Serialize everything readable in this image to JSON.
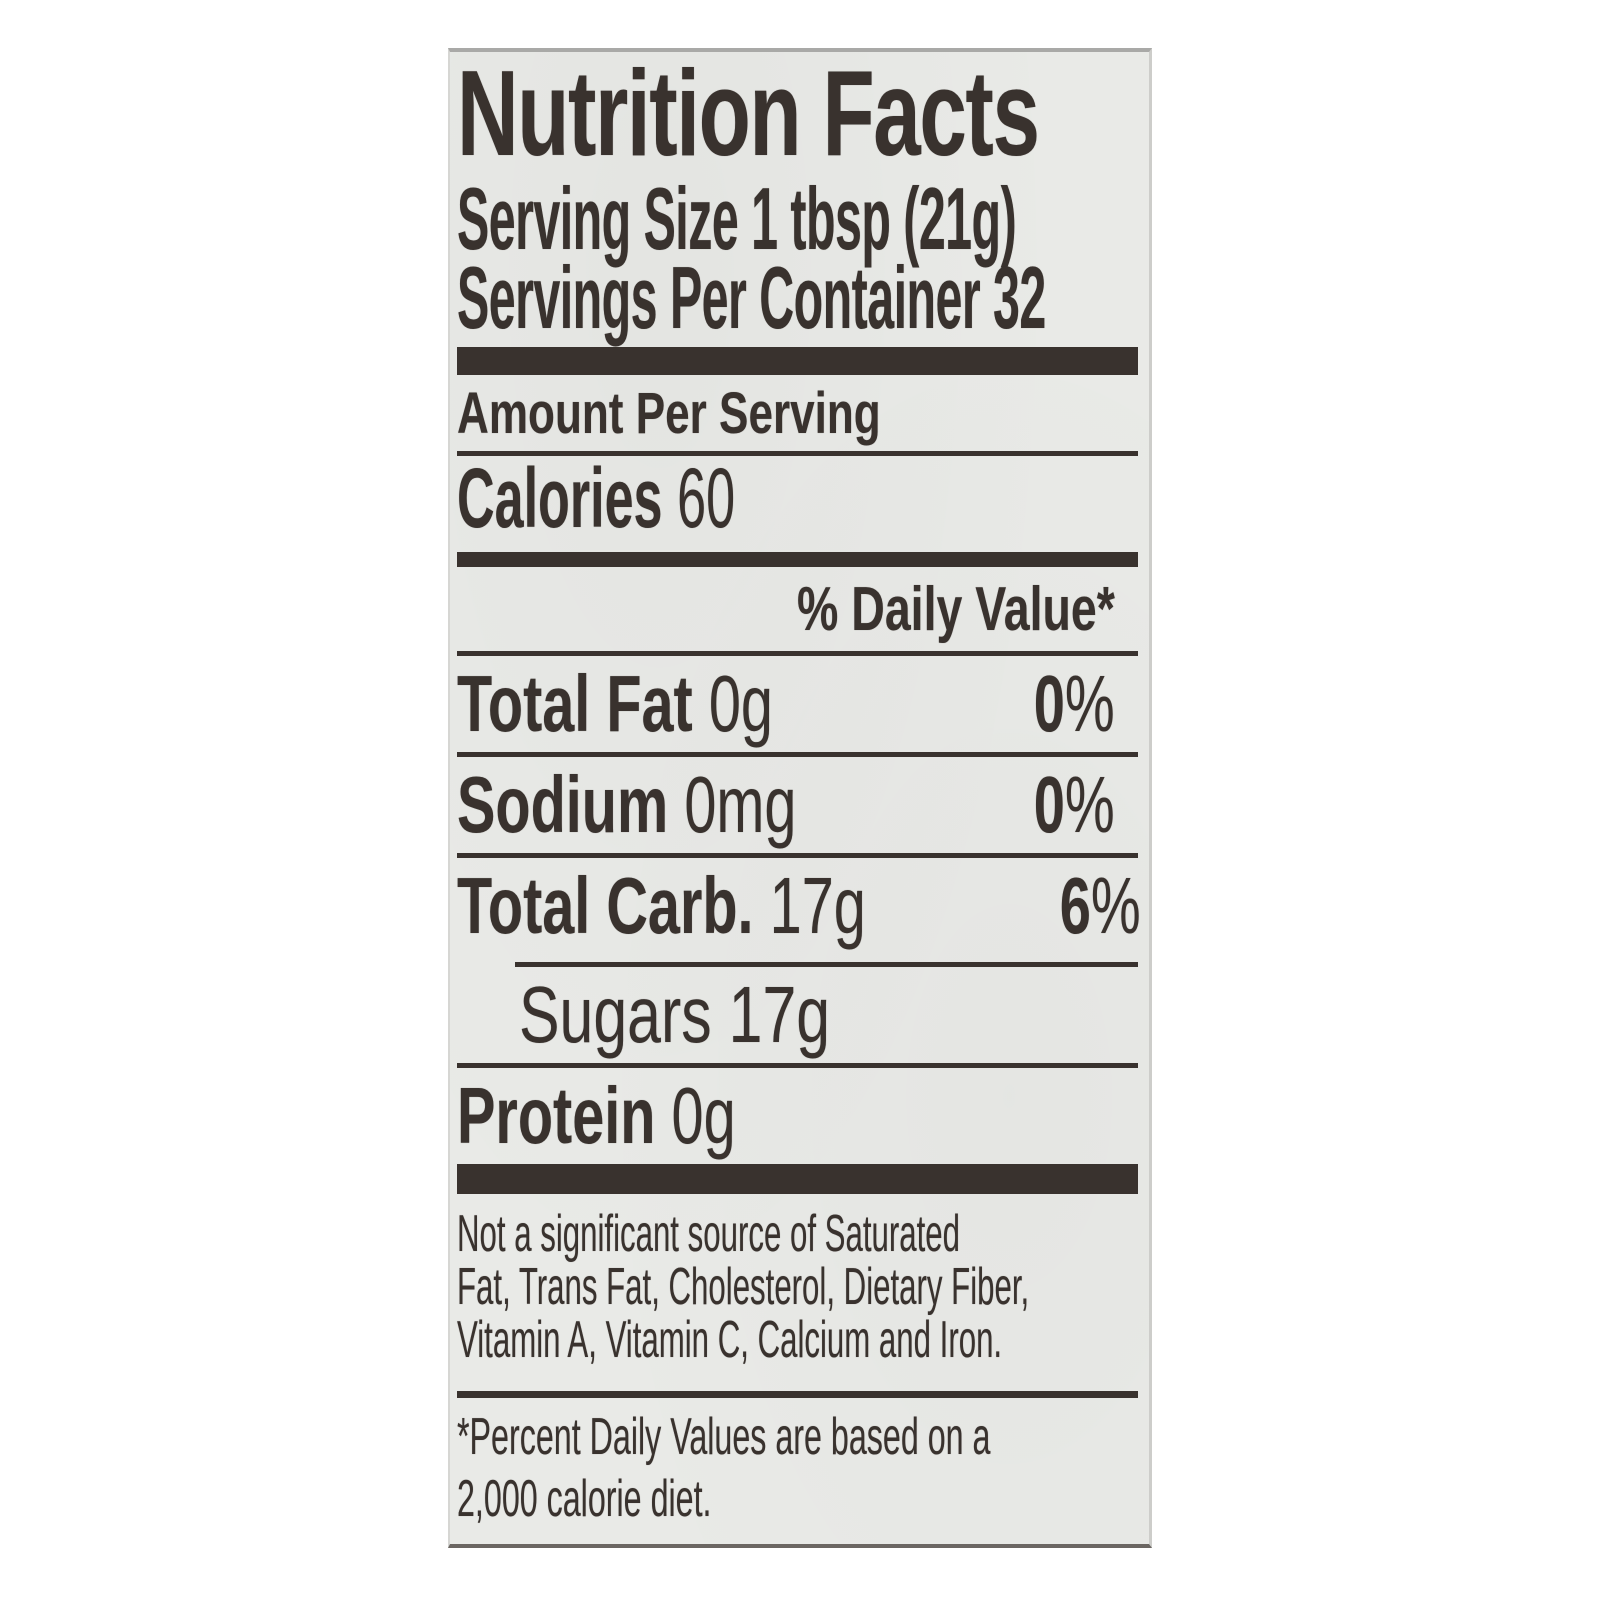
{
  "label": {
    "title": "Nutrition Facts",
    "serving_size": "Serving Size 1 tbsp (21g)",
    "servings_per_container": "Servings Per Container 32",
    "amount_per_serving": "Amount Per Serving",
    "calories_label": "Calories",
    "calories_value": "60",
    "daily_value_header": "% Daily Value*",
    "nutrients": [
      {
        "name": "Total Fat",
        "amount": "0g",
        "dv_value": "0",
        "dv_sign": "%"
      },
      {
        "name": "Sodium",
        "amount": "0mg",
        "dv_value": "0",
        "dv_sign": "%"
      },
      {
        "name": "Total Carb.",
        "amount": "17g",
        "dv_value": "6",
        "dv_sign": "%"
      }
    ],
    "sub_nutrient": {
      "name": "Sugars",
      "amount": "17g"
    },
    "protein": {
      "name": "Protein",
      "amount": "0g"
    },
    "footnote_lines": [
      "Not a significant source of Saturated",
      "Fat, Trans Fat, Cholesterol, Dietary Fiber,",
      "Vitamin A, Vitamin C, Calcium and Iron."
    ],
    "note_lines": [
      "*Percent Daily Values are based on a",
      "2,000 calorie diet."
    ],
    "colors": {
      "ink": "#39322e",
      "paper": "#e9eae7",
      "background": "#ffffff"
    }
  }
}
